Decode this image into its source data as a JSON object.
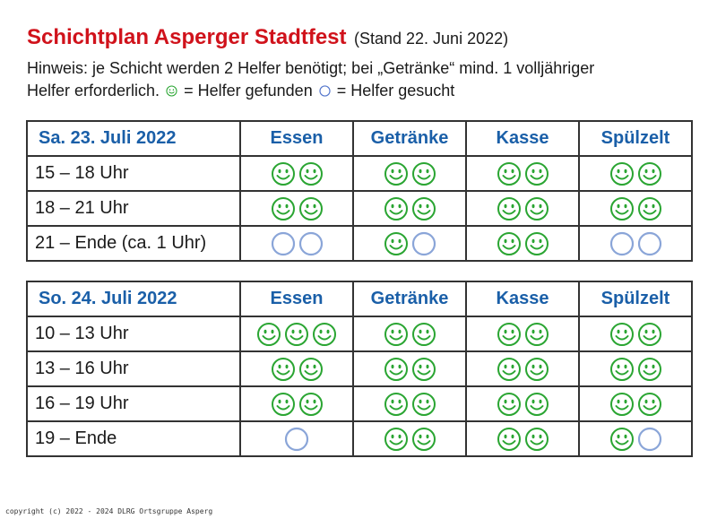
{
  "header": {
    "title": "Schichtplan Asperger Stadtfest",
    "stand": "(Stand 22. Juni 2022)"
  },
  "hint": {
    "line1": "Hinweis: je Schicht werden 2 Helfer benötigt; bei „Getränke“ mind. 1 volljähriger",
    "line2_start": "Helfer erforderlich.",
    "found_text": "= Helfer gefunden",
    "wanted_text": "= Helfer gesucht"
  },
  "colors": {
    "title_red": "#d0121b",
    "header_blue": "#1a5fa8",
    "smiley_green": "#2aa532",
    "circle_blue": "#8aa5d8"
  },
  "columns": [
    "Essen",
    "Getränke",
    "Kasse",
    "Spülzelt"
  ],
  "days": [
    {
      "label": "Sa. 23. Juli 2022",
      "rows": [
        {
          "time": "15 – 18 Uhr",
          "slots": [
            [
              "found",
              "found"
            ],
            [
              "found",
              "found"
            ],
            [
              "found",
              "found"
            ],
            [
              "found",
              "found"
            ]
          ]
        },
        {
          "time": "18 – 21 Uhr",
          "slots": [
            [
              "found",
              "found"
            ],
            [
              "found",
              "found"
            ],
            [
              "found",
              "found"
            ],
            [
              "found",
              "found"
            ]
          ]
        },
        {
          "time": "21 – Ende (ca. 1 Uhr)",
          "slots": [
            [
              "wanted",
              "wanted"
            ],
            [
              "found",
              "wanted"
            ],
            [
              "found",
              "found"
            ],
            [
              "wanted",
              "wanted"
            ]
          ]
        }
      ]
    },
    {
      "label": "So. 24. Juli 2022",
      "rows": [
        {
          "time": "10 – 13 Uhr",
          "slots": [
            [
              "found",
              "found",
              "found"
            ],
            [
              "found",
              "found"
            ],
            [
              "found",
              "found"
            ],
            [
              "found",
              "found"
            ]
          ]
        },
        {
          "time": "13 – 16 Uhr",
          "slots": [
            [
              "found",
              "found"
            ],
            [
              "found",
              "found"
            ],
            [
              "found",
              "found"
            ],
            [
              "found",
              "found"
            ]
          ]
        },
        {
          "time": "16 – 19 Uhr",
          "slots": [
            [
              "found",
              "found"
            ],
            [
              "found",
              "found"
            ],
            [
              "found",
              "found"
            ],
            [
              "found",
              "found"
            ]
          ]
        },
        {
          "time": "19 – Ende",
          "slots": [
            [
              "wanted"
            ],
            [
              "found",
              "found"
            ],
            [
              "found",
              "found"
            ],
            [
              "found",
              "wanted"
            ]
          ]
        }
      ]
    }
  ],
  "footer": "copyright (c) 2022 - 2024 DLRG Ortsgruppe Asperg"
}
